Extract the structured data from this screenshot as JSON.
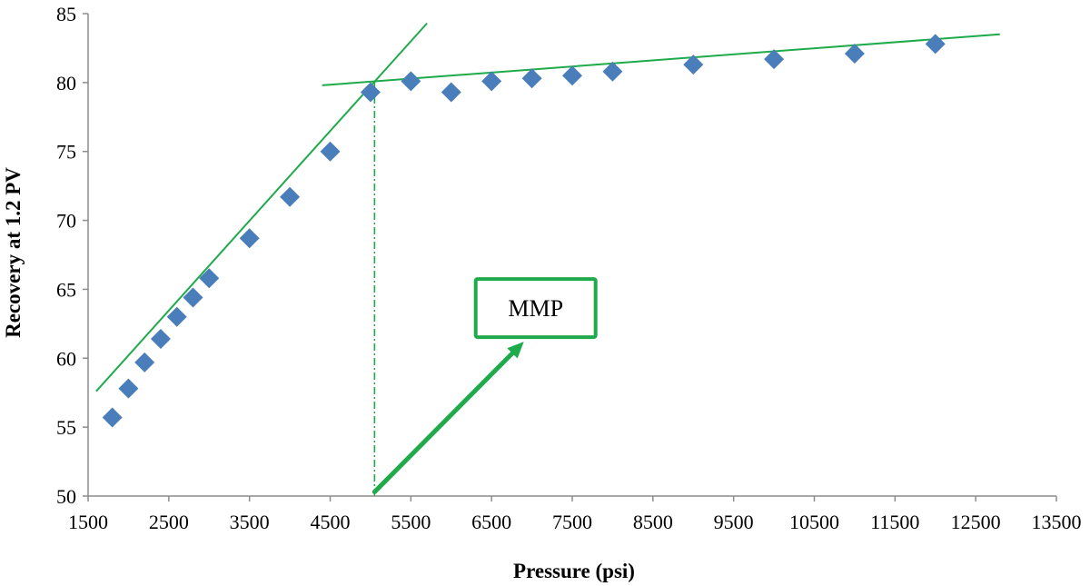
{
  "chart_data": {
    "type": "scatter",
    "title": "",
    "xlabel": "Pressure (psi)",
    "ylabel": "Recovery at 1.2 PV",
    "xlim": [
      1500,
      13500
    ],
    "ylim": [
      50,
      85
    ],
    "xticks": [
      1500,
      2500,
      3500,
      4500,
      5500,
      6500,
      7500,
      8500,
      9500,
      10500,
      11500,
      12500,
      13500
    ],
    "yticks": [
      50,
      55,
      60,
      65,
      70,
      75,
      80,
      85
    ],
    "grid": false,
    "legend": "none",
    "series": [
      {
        "marker": "diamond",
        "color": "#4a7ebb",
        "points": [
          [
            1800,
            55.7
          ],
          [
            2000,
            57.8
          ],
          [
            2200,
            59.7
          ],
          [
            2400,
            61.4
          ],
          [
            2600,
            63.0
          ],
          [
            2800,
            64.4
          ],
          [
            3000,
            65.8
          ],
          [
            3500,
            68.7
          ],
          [
            4000,
            71.7
          ],
          [
            4500,
            75.0
          ],
          [
            5000,
            79.3
          ],
          [
            5500,
            80.1
          ],
          [
            6000,
            79.3
          ],
          [
            6500,
            80.1
          ],
          [
            7000,
            80.3
          ],
          [
            7500,
            80.5
          ],
          [
            8000,
            80.8
          ],
          [
            9000,
            81.3
          ],
          [
            10000,
            81.7
          ],
          [
            11000,
            82.1
          ],
          [
            12000,
            82.8
          ]
        ]
      }
    ],
    "trendlines": [
      {
        "color": "#1faa4b",
        "from": [
          1600,
          57.6
        ],
        "to": [
          5700,
          84.3
        ]
      },
      {
        "color": "#1faa4b",
        "from": [
          4400,
          79.8
        ],
        "to": [
          12800,
          83.5
        ]
      }
    ],
    "mmp_marker": {
      "x": 5050,
      "y_from": 50,
      "y_to": 80.1,
      "color": "#1faa4b"
    },
    "annotation": {
      "text": "MMP",
      "color": "#1faa4b",
      "arrow_from": [
        5050,
        50.3
      ],
      "arrow_to": [
        6900,
        61.2
      ]
    }
  }
}
